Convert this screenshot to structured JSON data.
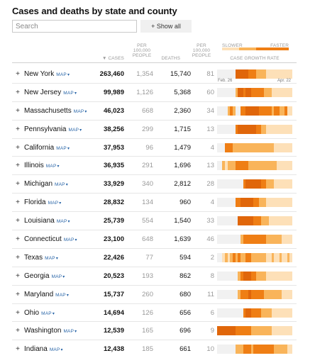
{
  "title": "Cases and deaths by state and county",
  "search": {
    "placeholder": "Search"
  },
  "show_all_label": "+ Show all",
  "headers": {
    "cases": "▼ CASES",
    "per100_cases": [
      "PER",
      "100,000",
      "PEOPLE"
    ],
    "deaths": "DEATHS",
    "per100_deaths": [
      "PER",
      "100,000",
      "PEOPLE"
    ],
    "growth": "CASE GROWTH RATE",
    "slower": "SLOWER",
    "faster": "FASTER"
  },
  "map_label": "MAP",
  "dates": {
    "start": "Feb. 26",
    "end": "Apr. 22"
  },
  "colors": {
    "none": "#f1f1f1",
    "slow": "#fde0b8",
    "mid": "#f9b45a",
    "fast": "#ef7e14",
    "fastest": "#e0660a"
  },
  "rows": [
    {
      "state": "New York",
      "cases": "263,460",
      "per100": "1,354",
      "deaths": "15,740",
      "dper100": "81",
      "growth": "00000004444433322221111111111",
      "show_dates": true
    },
    {
      "state": "New Jersey",
      "cases": "99,989",
      "per100": "1,126",
      "deaths": "5,368",
      "dper100": "60",
      "growth": "00000002443443333322211111111"
    },
    {
      "state": "Massachusetts",
      "cases": "46,023",
      "per100": "668",
      "deaths": "2,360",
      "dper100": "34",
      "growth": "00002320033444443333323322311"
    },
    {
      "state": "Pennsylvania",
      "cases": "38,256",
      "per100": "299",
      "deaths": "1,715",
      "dper100": "13",
      "growth": "00000003444444433221111111111"
    },
    {
      "state": "California",
      "cases": "37,953",
      "per100": "96",
      "deaths": "1,479",
      "dper100": "4",
      "growth": "00033322222222222222221111111"
    },
    {
      "state": "Illinois",
      "cases": "36,935",
      "per100": "291",
      "deaths": "1,696",
      "dper100": "13",
      "growth": "00212223333322222222222111111"
    },
    {
      "state": "Michigan",
      "cases": "33,929",
      "per100": "340",
      "deaths": "2,812",
      "dper100": "28",
      "growth": "00000000003444444332221111111"
    },
    {
      "state": "Florida",
      "cases": "28,832",
      "per100": "134",
      "deaths": "960",
      "dper100": "4",
      "growth": "00000003344444332221111111111"
    },
    {
      "state": "Louisiana",
      "cases": "25,739",
      "per100": "554",
      "deaths": "1,540",
      "dper100": "33",
      "growth": "00000000444444333222111111111"
    },
    {
      "state": "Connecticut",
      "cases": "23,100",
      "per100": "648",
      "deaths": "1,639",
      "dper100": "46",
      "growth": "00000000023333333332222221111"
    },
    {
      "state": "Texas",
      "cases": "22,426",
      "per100": "77",
      "deaths": "594",
      "dper100": "2",
      "growth": "00121232322332222221121121121"
    },
    {
      "state": "Georgia",
      "cases": "20,523",
      "per100": "193",
      "deaths": "862",
      "dper100": "8",
      "growth": "00000000234443322221111111111"
    },
    {
      "state": "Maryland",
      "cases": "15,737",
      "per100": "260",
      "deaths": "680",
      "dper100": "11",
      "growth": "00000000233343333322222221111"
    },
    {
      "state": "Ohio",
      "cases": "14,694",
      "per100": "126",
      "deaths": "656",
      "dper100": "6",
      "growth": "00000000003443333222211111111"
    },
    {
      "state": "Washington",
      "cases": "12,539",
      "per100": "165",
      "deaths": "696",
      "dper100": "9",
      "growth": "44444443333332222222211111111"
    },
    {
      "state": "Indiana",
      "cases": "12,438",
      "per100": "185",
      "deaths": "661",
      "dper100": "10",
      "growth": "00000002223332333333332222211"
    }
  ]
}
